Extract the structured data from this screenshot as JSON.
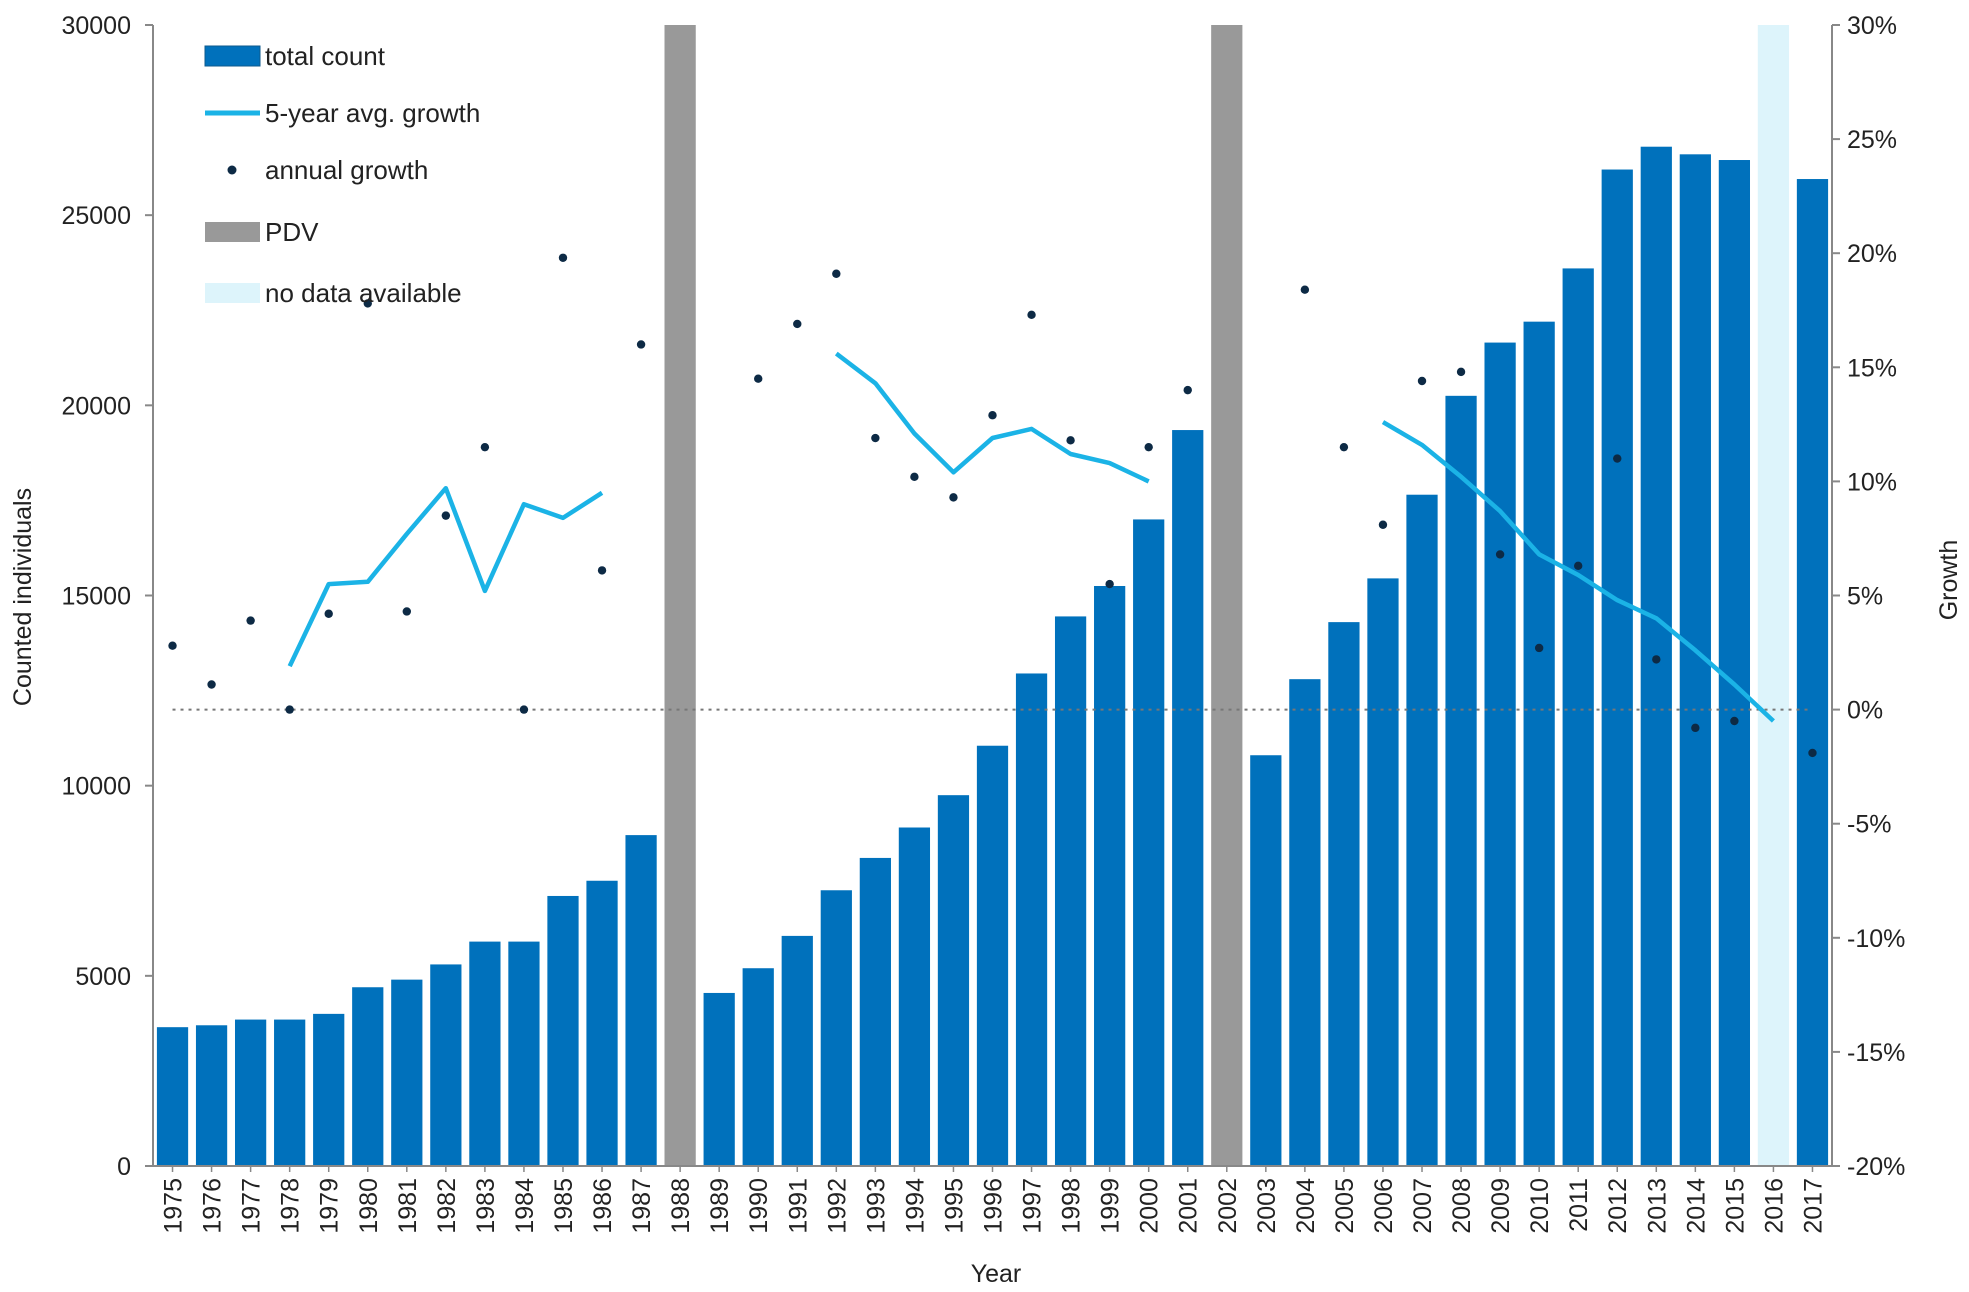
{
  "chart_data": {
    "type": "bar",
    "title": "",
    "xlabel": "Year",
    "ylabel": "Counted individuals",
    "y2label": "Growth",
    "ylim": [
      0,
      30000
    ],
    "y2lim": [
      -0.2,
      0.3
    ],
    "yticks": [
      "0",
      "5000",
      "10000",
      "15000",
      "20000",
      "25000",
      "30000"
    ],
    "y2ticks": [
      "-20%",
      "-15%",
      "-10%",
      "-5%",
      "0%",
      "5%",
      "10%",
      "15%",
      "20%",
      "25%",
      "30%"
    ],
    "grid": false,
    "legend_position": "top-left",
    "categories": [
      "1975",
      "1976",
      "1977",
      "1978",
      "1979",
      "1980",
      "1981",
      "1982",
      "1983",
      "1984",
      "1985",
      "1986",
      "1987",
      "1988",
      "1989",
      "1990",
      "1991",
      "1992",
      "1993",
      "1994",
      "1995",
      "1996",
      "1997",
      "1998",
      "1999",
      "2000",
      "2001",
      "2002",
      "2003",
      "2004",
      "2005",
      "2006",
      "2007",
      "2008",
      "2009",
      "2010",
      "2011",
      "2012",
      "2013",
      "2014",
      "2015",
      "2016",
      "2017"
    ],
    "series": [
      {
        "name": "total count",
        "kind": "bar",
        "color": "#0071BC",
        "values": [
          3650,
          3700,
          3850,
          3850,
          4000,
          4700,
          4900,
          5300,
          5900,
          5900,
          7100,
          7500,
          8700,
          null,
          4550,
          5200,
          6050,
          7250,
          8100,
          8900,
          9750,
          11050,
          12950,
          14450,
          15250,
          17000,
          19350,
          null,
          10800,
          12800,
          14300,
          15450,
          17650,
          20250,
          21650,
          22200,
          23600,
          26200,
          26800,
          26600,
          26450,
          null,
          25950
        ]
      },
      {
        "name": "5-year avg. growth",
        "kind": "line",
        "color": "#1BB3E6",
        "values": [
          null,
          null,
          null,
          0.019,
          0.055,
          0.056,
          0.077,
          0.097,
          0.052,
          0.09,
          0.084,
          0.095,
          null,
          null,
          null,
          null,
          null,
          0.156,
          0.143,
          0.121,
          0.104,
          0.119,
          0.123,
          0.112,
          0.108,
          0.1,
          null,
          null,
          null,
          null,
          null,
          0.126,
          0.116,
          0.102,
          0.087,
          0.068,
          0.059,
          0.048,
          0.04,
          0.026,
          0.011,
          -0.005,
          null
        ]
      },
      {
        "name": "annual growth",
        "kind": "scatter",
        "color": "#0D2A45",
        "values": [
          0.028,
          0.011,
          0.039,
          0.0,
          0.042,
          0.178,
          0.043,
          0.085,
          0.115,
          0.0,
          0.198,
          0.061,
          0.16,
          null,
          null,
          0.145,
          0.169,
          0.191,
          0.119,
          0.102,
          0.093,
          0.129,
          0.173,
          0.118,
          0.055,
          0.115,
          0.14,
          null,
          null,
          0.184,
          0.115,
          0.081,
          0.144,
          0.148,
          0.068,
          0.027,
          0.063,
          0.11,
          0.022,
          -0.008,
          -0.005,
          null,
          -0.019
        ]
      }
    ],
    "pdv_years": [
      "1988",
      "2002"
    ],
    "pdv_color": "#999999",
    "no_data_years": [
      "2016"
    ],
    "no_data_color": "#DDF4FB",
    "zero_line_style": "dotted"
  },
  "legend": {
    "total_count": "total count",
    "avg_growth": "5-year avg. growth",
    "annual_growth": "annual growth",
    "pdv": "PDV",
    "no_data": "no data available"
  }
}
